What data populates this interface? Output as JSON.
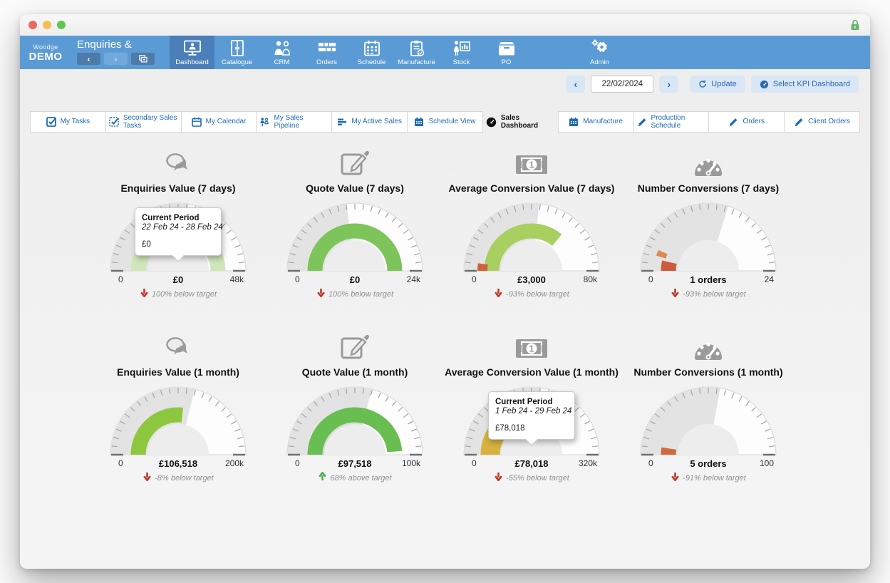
{
  "window": {
    "lock_icon": "lock"
  },
  "toolbar": {
    "logo_small": "Woodge",
    "logo_bold": "DEMO",
    "screen_title": "Enquiries &",
    "history": {
      "back_icon": "chevron-left",
      "forward_icon": "chevron-right",
      "windows_icon": "copy-window"
    },
    "nav": [
      {
        "label": "Dashboard",
        "icon": "dashboard",
        "active": true
      },
      {
        "label": "Catalogue",
        "icon": "catalogue",
        "active": false
      },
      {
        "label": "CRM",
        "icon": "crm",
        "active": false
      },
      {
        "label": "Orders",
        "icon": "orders",
        "active": false
      },
      {
        "label": "Schedule",
        "icon": "schedule",
        "active": false
      },
      {
        "label": "Manufacture",
        "icon": "manufacture",
        "active": false
      },
      {
        "label": "Stock",
        "icon": "stock",
        "active": false
      },
      {
        "label": "PO",
        "icon": "po",
        "active": false,
        "gap_after": true
      },
      {
        "label": "Admin",
        "icon": "admin",
        "active": false
      }
    ]
  },
  "datebar": {
    "prev_icon": "chevron-left",
    "date_value": "22/02/2024",
    "next_icon": "chevron-right",
    "update_label": "Update",
    "update_icon": "refresh",
    "select_label": "Select KPI Dashboard",
    "select_icon": "gauge-blue"
  },
  "tabs": [
    {
      "label": "My Tasks",
      "icon": "checkbox",
      "active": false
    },
    {
      "label": "Secondary Sales Tasks",
      "icon": "checkbox-dotted",
      "active": false
    },
    {
      "label": "My Calendar",
      "icon": "calendar",
      "active": false
    },
    {
      "label": "My Sales Pipeline",
      "icon": "pipeline",
      "active": false
    },
    {
      "label": "My Active Sales",
      "icon": "bars",
      "active": false
    },
    {
      "label": "Schedule View",
      "icon": "calendar-filled",
      "active": false
    },
    {
      "label": "Sales Dashboard",
      "icon": "gauge-black",
      "active": true
    },
    {
      "label": "Manufacture",
      "icon": "calendar-filled",
      "active": false
    },
    {
      "label": "Production Schedule",
      "icon": "pencil",
      "active": false
    },
    {
      "label": "Orders",
      "icon": "pencil",
      "active": false
    },
    {
      "label": "Client Orders",
      "icon": "pencil",
      "active": false
    }
  ],
  "chart_data": [
    {
      "type": "gauge",
      "title": "Enquiries Value (7 days)",
      "icon": "chat-bubbles",
      "min": 0,
      "max": 48000,
      "min_label": "0",
      "max_label": "48k",
      "value": 0,
      "value_label": "£0",
      "delta": "100% below target",
      "delta_dir": "down",
      "target_fraction": 0.55,
      "arcs": [
        {
          "from": 0,
          "to": 1.0,
          "color": "#cfe6ba",
          "band": "main"
        }
      ],
      "tooltip": {
        "title": "Current Period",
        "range": "22 Feb 24 - 28 Feb 24",
        "value": "£0"
      }
    },
    {
      "type": "gauge",
      "title": "Quote Value (7 days)",
      "icon": "edit-square",
      "min": 0,
      "max": 24000,
      "min_label": "0",
      "max_label": "24k",
      "value": 0,
      "value_label": "£0",
      "delta": "100% below target",
      "delta_dir": "down",
      "target_fraction": 0.46,
      "arcs": [
        {
          "from": 0,
          "to": 1.0,
          "color": "#7dc45a",
          "band": "main"
        }
      ]
    },
    {
      "type": "gauge",
      "title": "Average Conversion Value (7 days)",
      "icon": "banknote",
      "min": 0,
      "max": 80000,
      "min_label": "0",
      "max_label": "80k",
      "value": 3000,
      "value_label": "£3,000",
      "delta": "-93% below target",
      "delta_dir": "down",
      "target_fraction": 0.536,
      "arcs": [
        {
          "from": 0,
          "to": 0.72,
          "color": "#a9cf60",
          "band": "main"
        },
        {
          "from": 0,
          "to": 0.045,
          "color": "#d2603c",
          "band": "outer"
        }
      ]
    },
    {
      "type": "gauge",
      "title": "Number Conversions (7 days)",
      "icon": "speedometer",
      "min": 0,
      "max": 24,
      "min_label": "0",
      "max_label": "24",
      "value": 1,
      "value_label": "1 orders",
      "delta": "-93% below target",
      "delta_dir": "down",
      "target_fraction": 0.595,
      "arcs": [
        {
          "from": 0,
          "to": 0.07,
          "color": "#cd5a3c",
          "band": "main"
        },
        {
          "from": 0.09,
          "to": 0.125,
          "color": "#dc8a55",
          "band": "outer"
        }
      ]
    },
    {
      "type": "gauge",
      "title": "Enquiries Value (1 month)",
      "icon": "chat-bubbles",
      "min": 0,
      "max": 200000,
      "min_label": "0",
      "max_label": "200k",
      "value": 106518,
      "value_label": "£106,518",
      "delta": "-8% below target",
      "delta_dir": "down",
      "target_fraction": 0.579,
      "arcs": [
        {
          "from": 0,
          "to": 0.533,
          "color": "#8dc63f",
          "band": "main"
        }
      ]
    },
    {
      "type": "gauge",
      "title": "Quote Value (1 month)",
      "icon": "edit-square",
      "min": 0,
      "max": 100000,
      "min_label": "0",
      "max_label": "100k",
      "value": 97518,
      "value_label": "£97,518",
      "delta": "68% above target",
      "delta_dir": "up",
      "target_fraction": 0.58,
      "arcs": [
        {
          "from": 0,
          "to": 0.58,
          "color": "#d9d9d9",
          "band": "inner"
        },
        {
          "from": 0,
          "to": 0.975,
          "color": "#68be50",
          "band": "main"
        }
      ]
    },
    {
      "type": "gauge",
      "title": "Average Conversion Value (1 month)",
      "icon": "banknote",
      "min": 0,
      "max": 320000,
      "min_label": "0",
      "max_label": "320k",
      "value": 78018,
      "value_label": "£78,018",
      "delta": "-55% below target",
      "delta_dir": "down",
      "target_fraction": 0.541,
      "arcs": [
        {
          "from": 0,
          "to": 0.244,
          "color": "#d6b33f",
          "band": "wide"
        }
      ],
      "tooltip": {
        "title": "Current Period",
        "range": "1 Feb 24 - 29 Feb 24",
        "value": "£78,018"
      }
    },
    {
      "type": "gauge",
      "title": "Number Conversions (1 month)",
      "icon": "speedometer",
      "min": 0,
      "max": 100,
      "min_label": "0",
      "max_label": "100",
      "value": 5,
      "value_label": "5 orders",
      "delta": "-91% below target",
      "delta_dir": "down",
      "target_fraction": 0.556,
      "arcs": [
        {
          "from": 0,
          "to": 0.05,
          "color": "#d2693e",
          "band": "main"
        }
      ]
    }
  ]
}
